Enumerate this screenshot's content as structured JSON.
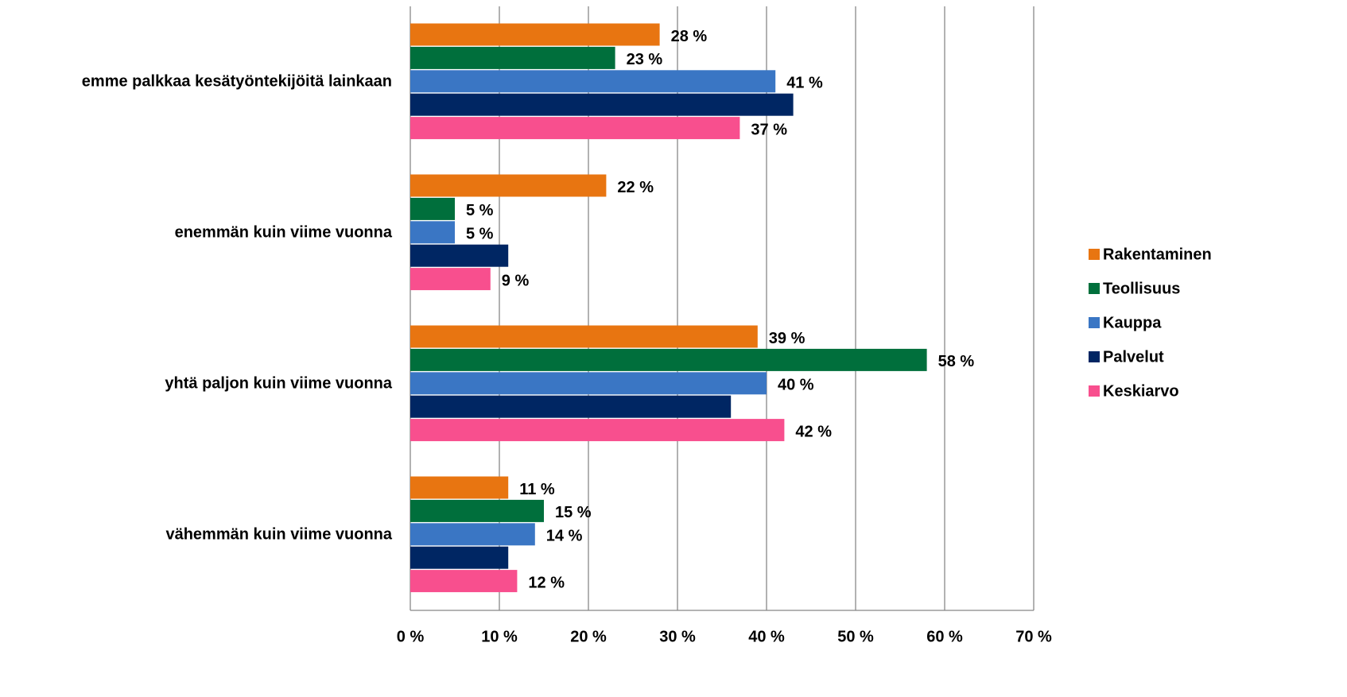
{
  "chart_data": {
    "type": "hbar",
    "categories": [
      "emme palkkaa kesätyöntekijöitä lainkaan",
      "enemmän kuin viime vuonna",
      "yhtä paljon kuin viime vuonna",
      "vähemmän kuin viime vuonna"
    ],
    "series": [
      {
        "name": "Rakentaminen",
        "color": "#e87511",
        "values": [
          28,
          22,
          39,
          11
        ],
        "value_labels": [
          "28 %",
          "22 %",
          "39 %",
          "11 %"
        ]
      },
      {
        "name": "Teollisuus",
        "color": "#006f3c",
        "values": [
          23,
          5,
          58,
          15
        ],
        "value_labels": [
          "23 %",
          "5 %",
          "58 %",
          "15 %"
        ]
      },
      {
        "name": "Kauppa",
        "color": "#3a76c4",
        "values": [
          41,
          5,
          40,
          14
        ],
        "value_labels": [
          "41 %",
          "5 %",
          "40 %",
          "14 %"
        ]
      },
      {
        "name": "Palvelut",
        "color": "#002663",
        "values": [
          43,
          11,
          36,
          11
        ]
      },
      {
        "name": "Keskiarvo",
        "color": "#f84f8e",
        "values": [
          37,
          9,
          42,
          12
        ],
        "value_labels": [
          "37 %",
          "9 %",
          "42 %",
          "12 %"
        ]
      }
    ],
    "xlim": [
      0,
      70
    ],
    "xticks": [
      {
        "value": 0,
        "label": "0 %"
      },
      {
        "value": 10,
        "label": "10 %"
      },
      {
        "value": 20,
        "label": "20 %"
      },
      {
        "value": 30,
        "label": "30 %"
      },
      {
        "value": 40,
        "label": "40 %"
      },
      {
        "value": 50,
        "label": "50 %"
      },
      {
        "value": 60,
        "label": "60 %"
      },
      {
        "value": 70,
        "label": "70 %"
      }
    ],
    "grid": true,
    "legend": "right"
  }
}
